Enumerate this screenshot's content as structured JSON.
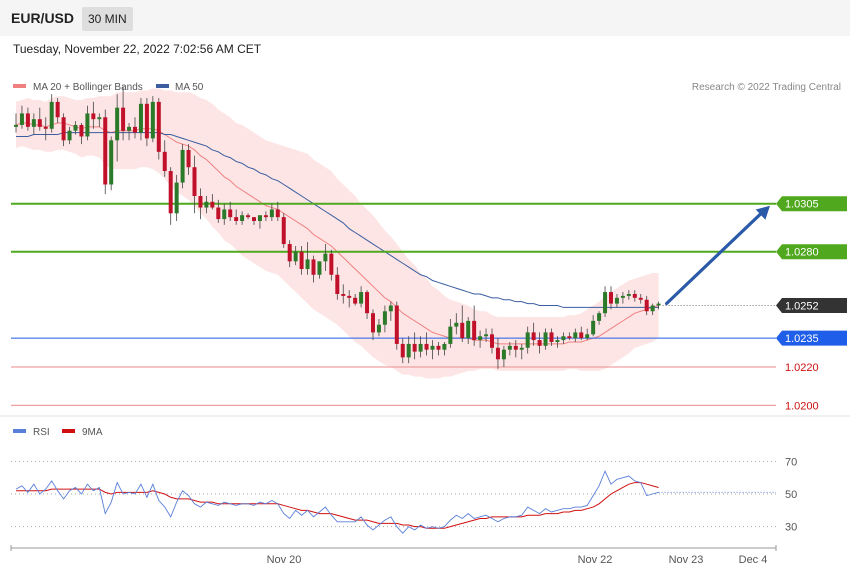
{
  "header": {
    "pair": "EUR/USD",
    "timeframe": "30 MIN"
  },
  "date": "Tuesday, November 22, 2022 7:02:56 AM CET",
  "legend": {
    "ma20": "MA 20 + Bollinger Bands",
    "ma50": "MA 50",
    "rsi": "RSI",
    "rsi_ma": "9MA"
  },
  "credit": "Research © 2022 Trading Central",
  "colors": {
    "up": "#2a7a2a",
    "down": "#c0102a",
    "ma20": "#f08080",
    "ma50": "#3a5ea0",
    "band": "#fde0e0",
    "resistance": "#4fa81e",
    "pivot": "#1f5ee8",
    "support": "#e65050",
    "current": "#333333",
    "arrow": "#2a5aa8"
  },
  "chart_data": [
    {
      "type": "candlestick",
      "title": "EUR/USD",
      "ylim": [
        1.0195,
        1.0372
      ],
      "levels": [
        {
          "value": 1.0305,
          "label": "1.0305",
          "kind": "resistance"
        },
        {
          "value": 1.028,
          "label": "1.0280",
          "kind": "resistance"
        },
        {
          "value": 1.0252,
          "label": "1.0252",
          "kind": "current"
        },
        {
          "value": 1.0235,
          "label": "1.0235",
          "kind": "pivot"
        },
        {
          "value": 1.022,
          "label": "1.0220",
          "kind": "support"
        },
        {
          "value": 1.02,
          "label": "1.0200",
          "kind": "support"
        }
      ],
      "x_ticks": [
        "Nov 20",
        "Nov 22",
        "Nov 23",
        "Dec 4"
      ],
      "ohlc": [
        [
          1.0345,
          1.0352,
          1.0342,
          1.0346
        ],
        [
          1.0346,
          1.0356,
          1.0344,
          1.0352
        ],
        [
          1.0352,
          1.0355,
          1.0343,
          1.0345
        ],
        [
          1.0345,
          1.0352,
          1.0341,
          1.0349
        ],
        [
          1.0349,
          1.0355,
          1.0343,
          1.0345
        ],
        [
          1.0345,
          1.035,
          1.0338,
          1.0344
        ],
        [
          1.0344,
          1.0362,
          1.0342,
          1.0358
        ],
        [
          1.0358,
          1.036,
          1.0347,
          1.035
        ],
        [
          1.035,
          1.0352,
          1.0335,
          1.0338
        ],
        [
          1.0338,
          1.0345,
          1.0336,
          1.0343
        ],
        [
          1.0343,
          1.0348,
          1.0341,
          1.0346
        ],
        [
          1.0346,
          1.0347,
          1.0336,
          1.034
        ],
        [
          1.034,
          1.0356,
          1.0338,
          1.0352
        ],
        [
          1.0352,
          1.0358,
          1.0344,
          1.0349
        ],
        [
          1.0349,
          1.0352,
          1.0345,
          1.035
        ],
        [
          1.035,
          1.0354,
          1.031,
          1.0315
        ],
        [
          1.0315,
          1.034,
          1.0312,
          1.0338
        ],
        [
          1.0338,
          1.0362,
          1.0327,
          1.0355
        ],
        [
          1.0355,
          1.0366,
          1.0338,
          1.0343
        ],
        [
          1.0343,
          1.0347,
          1.0338,
          1.0345
        ],
        [
          1.0345,
          1.035,
          1.0339,
          1.0342
        ],
        [
          1.0342,
          1.036,
          1.0338,
          1.0357
        ],
        [
          1.0357,
          1.036,
          1.0335,
          1.0339
        ],
        [
          1.0339,
          1.0361,
          1.0337,
          1.0358
        ],
        [
          1.0358,
          1.036,
          1.0328,
          1.0332
        ],
        [
          1.0332,
          1.0338,
          1.0319,
          1.0322
        ],
        [
          1.0322,
          1.0324,
          1.0294,
          1.03
        ],
        [
          1.03,
          1.032,
          1.0296,
          1.0316
        ],
        [
          1.0316,
          1.0336,
          1.0313,
          1.0333
        ],
        [
          1.0333,
          1.0336,
          1.032,
          1.0324
        ],
        [
          1.0324,
          1.033,
          1.03,
          1.0309
        ],
        [
          1.0309,
          1.0313,
          1.0297,
          1.0303
        ],
        [
          1.0303,
          1.0309,
          1.03,
          1.0306
        ],
        [
          1.0306,
          1.031,
          1.0302,
          1.0303
        ],
        [
          1.0303,
          1.0307,
          1.0295,
          1.0297
        ],
        [
          1.0297,
          1.0305,
          1.0294,
          1.0302
        ],
        [
          1.0302,
          1.0306,
          1.0296,
          1.0298
        ],
        [
          1.0298,
          1.0302,
          1.0294,
          1.0296
        ],
        [
          1.0296,
          1.0301,
          1.0294,
          1.0299
        ],
        [
          1.0299,
          1.03,
          1.0297,
          1.0298
        ],
        [
          1.0298,
          1.0298,
          1.0294,
          1.0296
        ],
        [
          1.0296,
          1.0299,
          1.0292,
          1.0299
        ],
        [
          1.0299,
          1.0301,
          1.0296,
          1.0298
        ],
        [
          1.0298,
          1.0305,
          1.0296,
          1.0302
        ],
        [
          1.0302,
          1.0306,
          1.0296,
          1.0298
        ],
        [
          1.0298,
          1.03,
          1.0282,
          1.0284
        ],
        [
          1.0284,
          1.0286,
          1.0272,
          1.0275
        ],
        [
          1.0275,
          1.0283,
          1.0273,
          1.028
        ],
        [
          1.028,
          1.0283,
          1.0268,
          1.0271
        ],
        [
          1.0271,
          1.0285,
          1.0268,
          1.0276
        ],
        [
          1.0276,
          1.0278,
          1.0264,
          1.0268
        ],
        [
          1.0268,
          1.0275,
          1.0266,
          1.0275
        ],
        [
          1.0275,
          1.0284,
          1.027,
          1.0279
        ],
        [
          1.0279,
          1.0281,
          1.0265,
          1.0268
        ],
        [
          1.0268,
          1.0272,
          1.0255,
          1.0258
        ],
        [
          1.0258,
          1.0263,
          1.0253,
          1.0257
        ],
        [
          1.0257,
          1.026,
          1.0251,
          1.0256
        ],
        [
          1.0256,
          1.0258,
          1.0252,
          1.0253
        ],
        [
          1.0253,
          1.0262,
          1.0251,
          1.0259
        ],
        [
          1.0259,
          1.026,
          1.0245,
          1.0248
        ],
        [
          1.0248,
          1.025,
          1.0234,
          1.0238
        ],
        [
          1.0238,
          1.0245,
          1.0236,
          1.0242
        ],
        [
          1.0242,
          1.0252,
          1.0238,
          1.0249
        ],
        [
          1.0249,
          1.0254,
          1.0244,
          1.0252
        ],
        [
          1.0252,
          1.0254,
          1.0229,
          1.0232
        ],
        [
          1.0232,
          1.0235,
          1.0222,
          1.0225
        ],
        [
          1.0225,
          1.0236,
          1.0222,
          1.0232
        ],
        [
          1.0232,
          1.0238,
          1.0224,
          1.0228
        ],
        [
          1.0228,
          1.0236,
          1.0225,
          1.0232
        ],
        [
          1.0232,
          1.0238,
          1.0226,
          1.0229
        ],
        [
          1.0229,
          1.0234,
          1.0224,
          1.0231
        ],
        [
          1.0231,
          1.0233,
          1.0226,
          1.0229
        ],
        [
          1.0229,
          1.0233,
          1.0226,
          1.0232
        ],
        [
          1.0232,
          1.0245,
          1.023,
          1.0241
        ],
        [
          1.0241,
          1.0248,
          1.0237,
          1.0243
        ],
        [
          1.0243,
          1.0252,
          1.0233,
          1.0235
        ],
        [
          1.0235,
          1.0246,
          1.0232,
          1.0244
        ],
        [
          1.0244,
          1.0252,
          1.0231,
          1.0234
        ],
        [
          1.0234,
          1.0239,
          1.023,
          1.0236
        ],
        [
          1.0236,
          1.024,
          1.0233,
          1.0237
        ],
        [
          1.0237,
          1.024,
          1.0227,
          1.023
        ],
        [
          1.023,
          1.0235,
          1.0219,
          1.0224
        ],
        [
          1.0224,
          1.0231,
          1.022,
          1.0229
        ],
        [
          1.0229,
          1.0233,
          1.0226,
          1.0231
        ],
        [
          1.0231,
          1.0234,
          1.0225,
          1.0229
        ],
        [
          1.0229,
          1.0232,
          1.0224,
          1.023
        ],
        [
          1.023,
          1.0241,
          1.0227,
          1.0238
        ],
        [
          1.0238,
          1.0243,
          1.0231,
          1.0234
        ],
        [
          1.0234,
          1.0238,
          1.0227,
          1.0231
        ],
        [
          1.0231,
          1.024,
          1.0229,
          1.0238
        ],
        [
          1.0238,
          1.024,
          1.0231,
          1.0233
        ],
        [
          1.0233,
          1.0236,
          1.023,
          1.0234
        ],
        [
          1.0234,
          1.0238,
          1.0232,
          1.0236
        ],
        [
          1.0236,
          1.0238,
          1.0234,
          1.0235
        ],
        [
          1.0235,
          1.024,
          1.0233,
          1.0238
        ],
        [
          1.0238,
          1.0241,
          1.0234,
          1.0235
        ],
        [
          1.0235,
          1.024,
          1.0234,
          1.0237
        ],
        [
          1.0237,
          1.0247,
          1.0236,
          1.0244
        ],
        [
          1.0244,
          1.0249,
          1.0242,
          1.0248
        ],
        [
          1.0248,
          1.0262,
          1.0246,
          1.0259
        ],
        [
          1.0259,
          1.0262,
          1.025,
          1.0253
        ],
        [
          1.0253,
          1.0258,
          1.0251,
          1.0256
        ],
        [
          1.0256,
          1.0259,
          1.0253,
          1.0257
        ],
        [
          1.0257,
          1.026,
          1.0255,
          1.0258
        ],
        [
          1.0258,
          1.026,
          1.0254,
          1.0256
        ],
        [
          1.0256,
          1.0258,
          1.0253,
          1.0255
        ],
        [
          1.0255,
          1.0257,
          1.0247,
          1.0249
        ],
        [
          1.0249,
          1.0253,
          1.0247,
          1.0252
        ],
        [
          1.0252,
          1.0254,
          1.025,
          1.0253
        ]
      ],
      "ma20": [
        1.0346,
        1.0347,
        1.0347,
        1.0346,
        1.0346,
        1.0345,
        1.0346,
        1.0347,
        1.0347,
        1.0346,
        1.0345,
        1.0344,
        1.0345,
        1.0345,
        1.0345,
        1.0343,
        1.0342,
        1.0343,
        1.0343,
        1.0343,
        1.0343,
        1.0344,
        1.0344,
        1.0344,
        1.0343,
        1.0341,
        1.0339,
        1.0337,
        1.0336,
        1.0335,
        1.0333,
        1.033,
        1.0328,
        1.0325,
        1.0322,
        1.0319,
        1.0317,
        1.0314,
        1.0312,
        1.031,
        1.0308,
        1.0306,
        1.0304,
        1.0303,
        1.0302,
        1.03,
        1.0298,
        1.0296,
        1.0294,
        1.0292,
        1.0289,
        1.0287,
        1.0285,
        1.0283,
        1.028,
        1.0277,
        1.0274,
        1.0271,
        1.0268,
        1.0265,
        1.0262,
        1.0259,
        1.0256,
        1.0254,
        1.0251,
        1.0248,
        1.0246,
        1.0244,
        1.0242,
        1.024,
        1.0238,
        1.0237,
        1.0236,
        1.0235,
        1.0235,
        1.0235,
        1.0235,
        1.0234,
        1.0234,
        1.0234,
        1.0233,
        1.0232,
        1.0232,
        1.0232,
        1.0232,
        1.0232,
        1.0232,
        1.0232,
        1.0232,
        1.0232,
        1.0232,
        1.0232,
        1.0232,
        1.0233,
        1.0233,
        1.0233,
        1.0234,
        1.0235,
        1.0236,
        1.0238,
        1.024,
        1.0242,
        1.0244,
        1.0246,
        1.0248,
        1.0249,
        1.025,
        1.0251,
        1.0252
      ],
      "ma50": [
        1.034,
        1.034,
        1.034,
        1.0341,
        1.0341,
        1.0341,
        1.0341,
        1.0341,
        1.0342,
        1.0342,
        1.0342,
        1.0342,
        1.0342,
        1.0342,
        1.0342,
        1.0342,
        1.0342,
        1.0342,
        1.0342,
        1.0342,
        1.0342,
        1.0342,
        1.0342,
        1.0342,
        1.0342,
        1.0341,
        1.0341,
        1.034,
        1.0339,
        1.0338,
        1.0337,
        1.0336,
        1.0335,
        1.0333,
        1.0332,
        1.033,
        1.0329,
        1.0327,
        1.0326,
        1.0324,
        1.0323,
        1.0321,
        1.032,
        1.0318,
        1.0317,
        1.0315,
        1.0313,
        1.0311,
        1.0309,
        1.0307,
        1.0305,
        1.0303,
        1.0301,
        1.0299,
        1.0297,
        1.0295,
        1.0292,
        1.029,
        1.0288,
        1.0286,
        1.0284,
        1.0282,
        1.028,
        1.0278,
        1.0276,
        1.0274,
        1.0272,
        1.027,
        1.0268,
        1.0267,
        1.0265,
        1.0264,
        1.0263,
        1.0262,
        1.0261,
        1.026,
        1.0259,
        1.0258,
        1.0258,
        1.0257,
        1.0256,
        1.0256,
        1.0255,
        1.0255,
        1.0254,
        1.0254,
        1.0253,
        1.0253,
        1.0252,
        1.0252,
        1.0252,
        1.0252,
        1.0251,
        1.0251,
        1.0251,
        1.0251,
        1.0251,
        1.0251,
        1.0251,
        1.0251,
        1.0251,
        1.0251,
        1.0251,
        1.0251,
        1.0251,
        1.0251,
        1.0251,
        1.0251,
        1.0251
      ],
      "band_width": [
        0.0012,
        0.0012,
        0.0013,
        0.0013,
        0.0013,
        0.0013,
        0.0014,
        0.0014,
        0.0014,
        0.0014,
        0.0014,
        0.0015,
        0.0015,
        0.0015,
        0.0016,
        0.0018,
        0.0019,
        0.002,
        0.002,
        0.002,
        0.002,
        0.002,
        0.002,
        0.0021,
        0.0022,
        0.0023,
        0.0025,
        0.0026,
        0.0027,
        0.0028,
        0.0029,
        0.003,
        0.0031,
        0.0032,
        0.0032,
        0.0033,
        0.0033,
        0.0033,
        0.0034,
        0.0034,
        0.0034,
        0.0034,
        0.0034,
        0.0034,
        0.0034,
        0.0035,
        0.0036,
        0.0037,
        0.0038,
        0.0039,
        0.0039,
        0.0039,
        0.0039,
        0.0039,
        0.0038,
        0.0038,
        0.0038,
        0.0038,
        0.0037,
        0.0037,
        0.0037,
        0.0036,
        0.0035,
        0.0034,
        0.0033,
        0.0032,
        0.003,
        0.0029,
        0.0027,
        0.0026,
        0.0024,
        0.0023,
        0.0021,
        0.002,
        0.0019,
        0.0018,
        0.0017,
        0.0016,
        0.0015,
        0.0015,
        0.0014,
        0.0014,
        0.0014,
        0.0014,
        0.0014,
        0.0014,
        0.0014,
        0.0014,
        0.0014,
        0.0014,
        0.0014,
        0.0014,
        0.0014,
        0.0014,
        0.0014,
        0.0015,
        0.0016,
        0.0017,
        0.0018,
        0.0019,
        0.0019,
        0.0019,
        0.0019,
        0.0019,
        0.0018,
        0.0018,
        0.0018,
        0.0018,
        0.0017
      ],
      "projection": {
        "from": 1.0252,
        "to": 1.0305
      }
    },
    {
      "type": "line",
      "title": "RSI",
      "ylim": [
        20,
        80
      ],
      "y_ticks": [
        70,
        50,
        30
      ],
      "rsi": [
        53,
        55,
        51,
        56,
        50,
        53,
        58,
        52,
        47,
        52,
        54,
        50,
        56,
        52,
        54,
        38,
        45,
        57,
        50,
        51,
        50,
        56,
        48,
        56,
        46,
        42,
        36,
        45,
        52,
        49,
        44,
        42,
        45,
        44,
        43,
        45,
        44,
        43,
        44,
        44,
        43,
        45,
        44,
        46,
        44,
        38,
        35,
        40,
        37,
        40,
        36,
        39,
        42,
        37,
        33,
        33,
        33,
        33,
        36,
        31,
        28,
        31,
        34,
        36,
        30,
        26,
        30,
        28,
        31,
        29,
        30,
        29,
        30,
        34,
        37,
        35,
        38,
        35,
        36,
        37,
        35,
        33,
        35,
        36,
        36,
        37,
        42,
        40,
        38,
        41,
        39,
        40,
        41,
        41,
        42,
        42,
        43,
        49,
        55,
        64,
        56,
        59,
        60,
        61,
        58,
        57,
        49,
        50,
        51
      ],
      "ma9": [
        52,
        52,
        52,
        52,
        52,
        52,
        53,
        53,
        53,
        53,
        53,
        53,
        53,
        53,
        53,
        51,
        50,
        51,
        51,
        51,
        51,
        51,
        51,
        52,
        51,
        50,
        48,
        47,
        47,
        47,
        46,
        45,
        45,
        45,
        44,
        44,
        44,
        44,
        44,
        44,
        44,
        44,
        44,
        44,
        44,
        43,
        42,
        41,
        40,
        40,
        39,
        38,
        38,
        38,
        37,
        36,
        35,
        34,
        34,
        34,
        33,
        32,
        32,
        32,
        32,
        31,
        31,
        30,
        30,
        29,
        29,
        29,
        29,
        30,
        31,
        32,
        33,
        34,
        35,
        35,
        36,
        36,
        36,
        36,
        36,
        36,
        37,
        37,
        37,
        38,
        38,
        38,
        39,
        39,
        40,
        40,
        41,
        42,
        44,
        47,
        50,
        52,
        54,
        56,
        57,
        57,
        56,
        55,
        54
      ]
    }
  ]
}
